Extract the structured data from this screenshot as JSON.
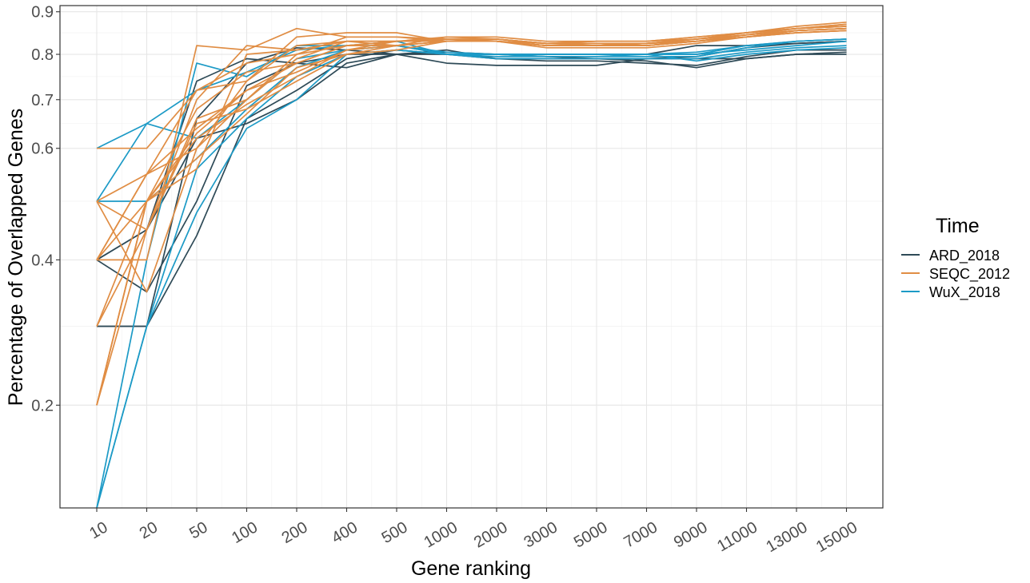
{
  "chart_data": {
    "type": "line",
    "xlabel": "Gene ranking",
    "ylabel": "Percentage of Overlapped Genes",
    "categories": [
      "10",
      "20",
      "50",
      "100",
      "200",
      "400",
      "500",
      "1000",
      "2000",
      "3000",
      "5000",
      "7000",
      "9000",
      "11000",
      "13000",
      "15000"
    ],
    "y_ticks": [
      "0.2",
      "0.4",
      "0.6",
      "0.7",
      "0.8",
      "0.9"
    ],
    "y_scale": "sqrt",
    "ylim": [
      0.1,
      0.915
    ],
    "grid": true,
    "legend": {
      "title": "Time",
      "placement": "right",
      "entries": [
        {
          "name": "ARD_2018",
          "color": "#2e4a57"
        },
        {
          "name": "SEQC_2012",
          "color": "#e08d44"
        },
        {
          "name": "WuX_2018",
          "color": "#1c9ac6"
        }
      ]
    },
    "series": [
      {
        "group": "ARD_2018",
        "values": [
          0.4,
          0.45,
          0.74,
          0.79,
          0.78,
          0.8,
          0.8,
          0.78,
          0.775,
          0.775,
          0.775,
          0.79,
          0.79,
          0.79,
          0.8,
          0.8
        ]
      },
      {
        "group": "ARD_2018",
        "values": [
          0.3,
          0.3,
          0.66,
          0.78,
          0.815,
          0.81,
          0.8,
          0.81,
          0.79,
          0.79,
          0.79,
          0.785,
          0.77,
          0.79,
          0.8,
          0.805
        ]
      },
      {
        "group": "ARD_2018",
        "values": [
          0.4,
          0.35,
          0.5,
          0.73,
          0.78,
          0.77,
          0.8,
          0.8,
          0.8,
          0.8,
          0.8,
          0.8,
          0.82,
          0.82,
          0.825,
          0.83
        ]
      },
      {
        "group": "ARD_2018",
        "values": [
          0.3,
          0.3,
          0.44,
          0.66,
          0.72,
          0.79,
          0.81,
          0.8,
          0.79,
          0.785,
          0.785,
          0.78,
          0.775,
          0.795,
          0.81,
          0.81
        ]
      },
      {
        "group": "ARD_2018",
        "values": [
          0.4,
          0.45,
          0.62,
          0.65,
          0.7,
          0.78,
          0.8,
          0.805,
          0.8,
          0.795,
          0.79,
          0.79,
          0.795,
          0.815,
          0.825,
          0.83
        ]
      },
      {
        "group": "SEQC_2012",
        "values": [
          0.6,
          0.6,
          0.72,
          0.74,
          0.84,
          0.85,
          0.85,
          0.83,
          0.83,
          0.82,
          0.82,
          0.82,
          0.83,
          0.84,
          0.855,
          0.86
        ]
      },
      {
        "group": "SEQC_2012",
        "values": [
          0.4,
          0.4,
          0.82,
          0.81,
          0.86,
          0.84,
          0.84,
          0.83,
          0.835,
          0.825,
          0.825,
          0.825,
          0.835,
          0.845,
          0.86,
          0.87
        ]
      },
      {
        "group": "SEQC_2012",
        "values": [
          0.5,
          0.45,
          0.7,
          0.82,
          0.81,
          0.83,
          0.83,
          0.835,
          0.83,
          0.825,
          0.83,
          0.83,
          0.835,
          0.85,
          0.865,
          0.875
        ]
      },
      {
        "group": "SEQC_2012",
        "values": [
          0.2,
          0.5,
          0.56,
          0.8,
          0.81,
          0.83,
          0.83,
          0.83,
          0.83,
          0.82,
          0.82,
          0.82,
          0.83,
          0.84,
          0.85,
          0.855
        ]
      },
      {
        "group": "SEQC_2012",
        "values": [
          0.5,
          0.35,
          0.6,
          0.7,
          0.79,
          0.83,
          0.82,
          0.83,
          0.83,
          0.815,
          0.815,
          0.815,
          0.825,
          0.84,
          0.855,
          0.86
        ]
      },
      {
        "group": "SEQC_2012",
        "values": [
          0.2,
          0.5,
          0.68,
          0.76,
          0.78,
          0.82,
          0.83,
          0.84,
          0.84,
          0.83,
          0.83,
          0.83,
          0.84,
          0.85,
          0.86,
          0.865
        ]
      },
      {
        "group": "SEQC_2012",
        "values": [
          0.4,
          0.55,
          0.64,
          0.72,
          0.76,
          0.81,
          0.83,
          0.83,
          0.83,
          0.82,
          0.82,
          0.825,
          0.83,
          0.845,
          0.855,
          0.86
        ]
      },
      {
        "group": "SEQC_2012",
        "values": [
          0.3,
          0.5,
          0.62,
          0.69,
          0.75,
          0.81,
          0.82,
          0.83,
          0.83,
          0.82,
          0.825,
          0.825,
          0.835,
          0.845,
          0.86,
          0.865
        ]
      },
      {
        "group": "SEQC_2012",
        "values": [
          0.4,
          0.5,
          0.58,
          0.67,
          0.77,
          0.8,
          0.82,
          0.84,
          0.835,
          0.825,
          0.825,
          0.82,
          0.83,
          0.84,
          0.85,
          0.855
        ]
      },
      {
        "group": "SEQC_2012",
        "values": [
          0.2,
          0.45,
          0.66,
          0.7,
          0.8,
          0.82,
          0.82,
          0.83,
          0.83,
          0.82,
          0.82,
          0.825,
          0.835,
          0.85,
          0.86,
          0.865
        ]
      },
      {
        "group": "SEQC_2012",
        "values": [
          0.5,
          0.55,
          0.6,
          0.74,
          0.82,
          0.83,
          0.83,
          0.83,
          0.83,
          0.82,
          0.82,
          0.825,
          0.83,
          0.84,
          0.855,
          0.86
        ]
      },
      {
        "group": "SEQC_2012",
        "values": [
          0.3,
          0.45,
          0.65,
          0.68,
          0.74,
          0.8,
          0.81,
          0.83,
          0.835,
          0.825,
          0.83,
          0.83,
          0.84,
          0.85,
          0.86,
          0.87
        ]
      },
      {
        "group": "SEQC_2012",
        "values": [
          0.4,
          0.55,
          0.72,
          0.78,
          0.8,
          0.84,
          0.84,
          0.835,
          0.835,
          0.825,
          0.825,
          0.825,
          0.83,
          0.845,
          0.855,
          0.86
        ]
      },
      {
        "group": "SEQC_2012",
        "values": [
          0.2,
          0.5,
          0.63,
          0.72,
          0.78,
          0.82,
          0.83,
          0.83,
          0.83,
          0.82,
          0.82,
          0.82,
          0.83,
          0.84,
          0.85,
          0.855
        ]
      },
      {
        "group": "WuX_2018",
        "values": [
          0.6,
          0.65,
          0.72,
          0.76,
          0.81,
          0.82,
          0.82,
          0.8,
          0.8,
          0.8,
          0.8,
          0.8,
          0.8,
          0.81,
          0.82,
          0.83
        ]
      },
      {
        "group": "WuX_2018",
        "values": [
          0.1,
          0.4,
          0.78,
          0.75,
          0.82,
          0.82,
          0.83,
          0.8,
          0.79,
          0.79,
          0.79,
          0.79,
          0.79,
          0.805,
          0.815,
          0.82
        ]
      },
      {
        "group": "WuX_2018",
        "values": [
          0.5,
          0.65,
          0.62,
          0.7,
          0.79,
          0.81,
          0.82,
          0.8,
          0.8,
          0.8,
          0.8,
          0.8,
          0.785,
          0.8,
          0.81,
          0.815
        ]
      },
      {
        "group": "WuX_2018",
        "values": [
          0.1,
          0.3,
          0.48,
          0.64,
          0.7,
          0.8,
          0.81,
          0.8,
          0.8,
          0.795,
          0.795,
          0.8,
          0.805,
          0.82,
          0.83,
          0.835
        ]
      },
      {
        "group": "WuX_2018",
        "values": [
          0.1,
          0.3,
          0.56,
          0.66,
          0.75,
          0.8,
          0.81,
          0.8,
          0.795,
          0.795,
          0.795,
          0.795,
          0.795,
          0.815,
          0.83,
          0.835
        ]
      },
      {
        "group": "WuX_2018",
        "values": [
          0.5,
          0.5,
          0.58,
          0.68,
          0.77,
          0.81,
          0.82,
          0.805,
          0.8,
          0.8,
          0.8,
          0.8,
          0.8,
          0.82,
          0.83,
          0.835
        ]
      }
    ]
  }
}
